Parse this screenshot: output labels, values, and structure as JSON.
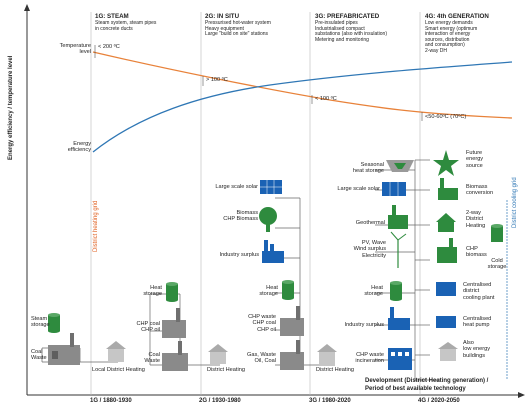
{
  "colors": {
    "temperature_curve": "#e8823a",
    "efficiency_curve": "#2f77b5",
    "icon_green": "#2e8b3e",
    "icon_blue": "#1a62b4",
    "icon_gray": "#8a8a8a",
    "dh_grid_label": "#e06020",
    "dc_grid_label": "#2f77b5"
  },
  "axes": {
    "y_label": "Energy efficiency / temperature level",
    "x_label_line1": "Development (District Heating generation) /",
    "x_label_line2": "Period of best available technology"
  },
  "generations": [
    {
      "title": "1G: STEAM",
      "desc": "Steam system, steam pipes\nin concrete ducts",
      "period": "1G / 1880-1930"
    },
    {
      "title": "2G: IN SITU",
      "desc": "Pressurised hot-water system\nHeavy equipment\nLarge \"build on site\" stations",
      "period": "2G / 1930-1980"
    },
    {
      "title": "3G: PREFABRICATED",
      "desc": "Pre-insulated pipes\nIndustrialised compact\nsubstations (also with insulation)\nMetering and monitoring",
      "period": "3G / 1980-2020"
    },
    {
      "title": "4G: 4th GENERATION",
      "desc": "Low energy demands\nSmart energy (optimum\ninteraction of energy\nsources, distribution\nand consumption)\n2-way DH",
      "period": "4G / 2020-2050"
    }
  ],
  "curve_labels": {
    "temperature_level": "Temperature\nlevel",
    "energy_efficiency": "Energy\nefficiency",
    "t1": "< 200 ºC",
    "t2": "> 100 ºC",
    "t3": "< 100 ºC",
    "t4": "<50-60ºC (70ºC)"
  },
  "grid_labels": {
    "district_heating_grid": "District heating grid",
    "district_cooling_grid": "District cooling grid"
  },
  "g1_labels": {
    "steam_storage": "Steam\nstorage",
    "coal_waste": "Coal\nWaste",
    "network": "Local District Heating"
  },
  "g2_labels": {
    "heat_storage": "Heat\nstorage",
    "chp_coal_oil": "CHP coal\nCHP oil",
    "coal": "Coal\nWaste",
    "network": "District Heating"
  },
  "g3_labels": {
    "large_scale_solar": "Large scale solar",
    "biomass_chp": "Biomass\nCHP Biomass",
    "industry_surplus": "Industry surplus",
    "heat_storage": "Heat\nstorage",
    "chp_waste": "CHP waste\nCHP coal\nCHP oil",
    "gas_waste": "Gas, Waste\nOil, Coal",
    "network": "District Heating"
  },
  "g4_labels": {
    "seasonal_storage": "Seasonal\nheat storage",
    "large_scale_solar": "Large scale solar",
    "geothermal": "Geothermal",
    "pv_wave_wind": "PV, Wave\nWind surplus\nElectricity",
    "heat_storage": "Heat\nstorage",
    "industry_surplus": "Industry surplus",
    "chp_waste_incineration": "CHP waste\nincineration",
    "future_energy": "Future\nenergy\nsource",
    "biomass_conversion": "Biomass\nconversion",
    "two_way_dh": "2-way\nDistrict\nHeating",
    "chp_biomass": "CHP\nbiomass",
    "cold_storage": "Cold\nstorage",
    "centralised_cooling": "Centralised\ndistrict\ncooling plant",
    "centralised_heat_pump": "Centralised\nheat pump",
    "low_energy_buildings": "Also\nlow energy\nbuildings"
  }
}
